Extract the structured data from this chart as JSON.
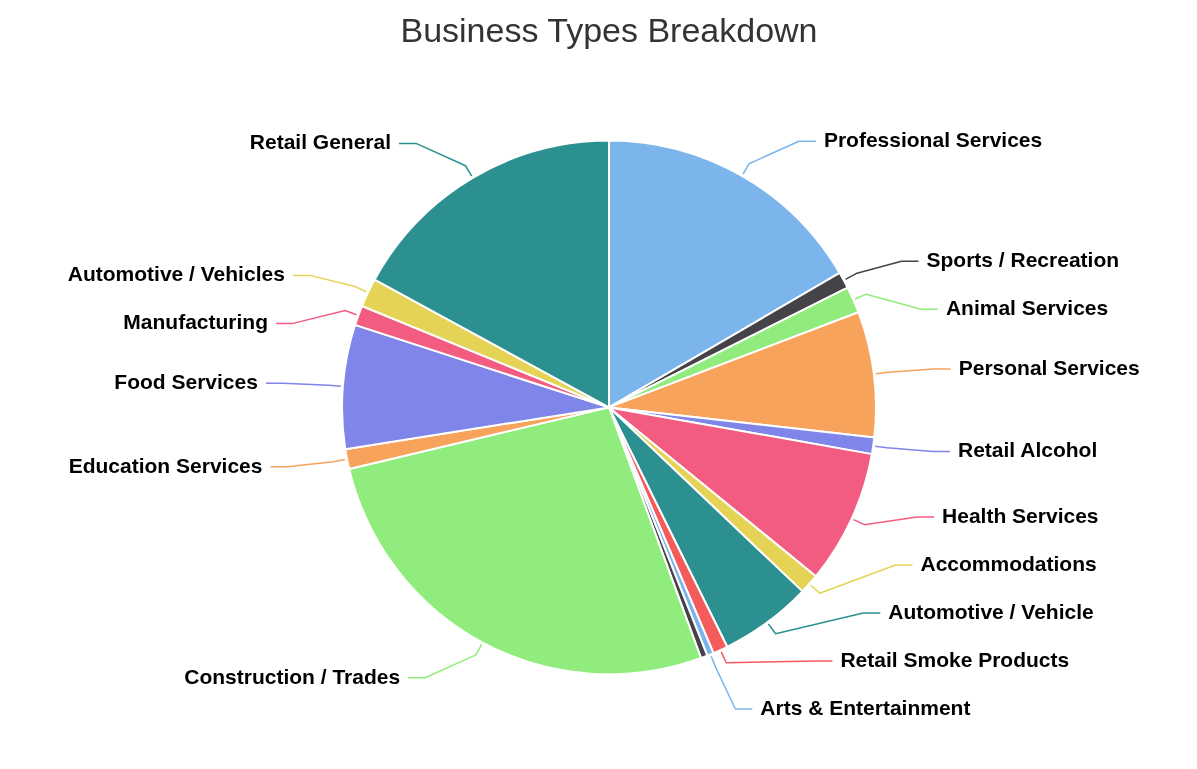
{
  "chart_data": {
    "type": "pie",
    "title": "Business Types Breakdown",
    "categories": [
      "Professional Services",
      "Sports / Recreation",
      "Animal Services",
      "Personal Services",
      "Retail Alcohol",
      "Health Services",
      "Accommodations",
      "Automotive / Vehicle",
      "Retail Smoke Products",
      "Arts & Entertainment",
      null,
      "Construction / Trades",
      "Education Services",
      "Food Services",
      "Manufacturing",
      "Automotive / Vehicles",
      "Retail General"
    ],
    "values": [
      16.6,
      1.0,
      1.6,
      7.6,
      1.0,
      8.1,
      1.2,
      5.6,
      0.9,
      0.4,
      0.4,
      26.9,
      1.2,
      7.5,
      1.2,
      1.75,
      17.05
    ],
    "colors": [
      "#7cb5ec",
      "#434348",
      "#90ed7d",
      "#f7a35c",
      "#8085e9",
      "#f15c80",
      "#e4d354",
      "#2b908f",
      "#f45b5b",
      "#7cb5ec",
      "#434348",
      "#90ed7d",
      "#f7a35c",
      "#8085e9",
      "#f15c80",
      "#e4d354",
      "#2b908f"
    ],
    "legend": false
  }
}
